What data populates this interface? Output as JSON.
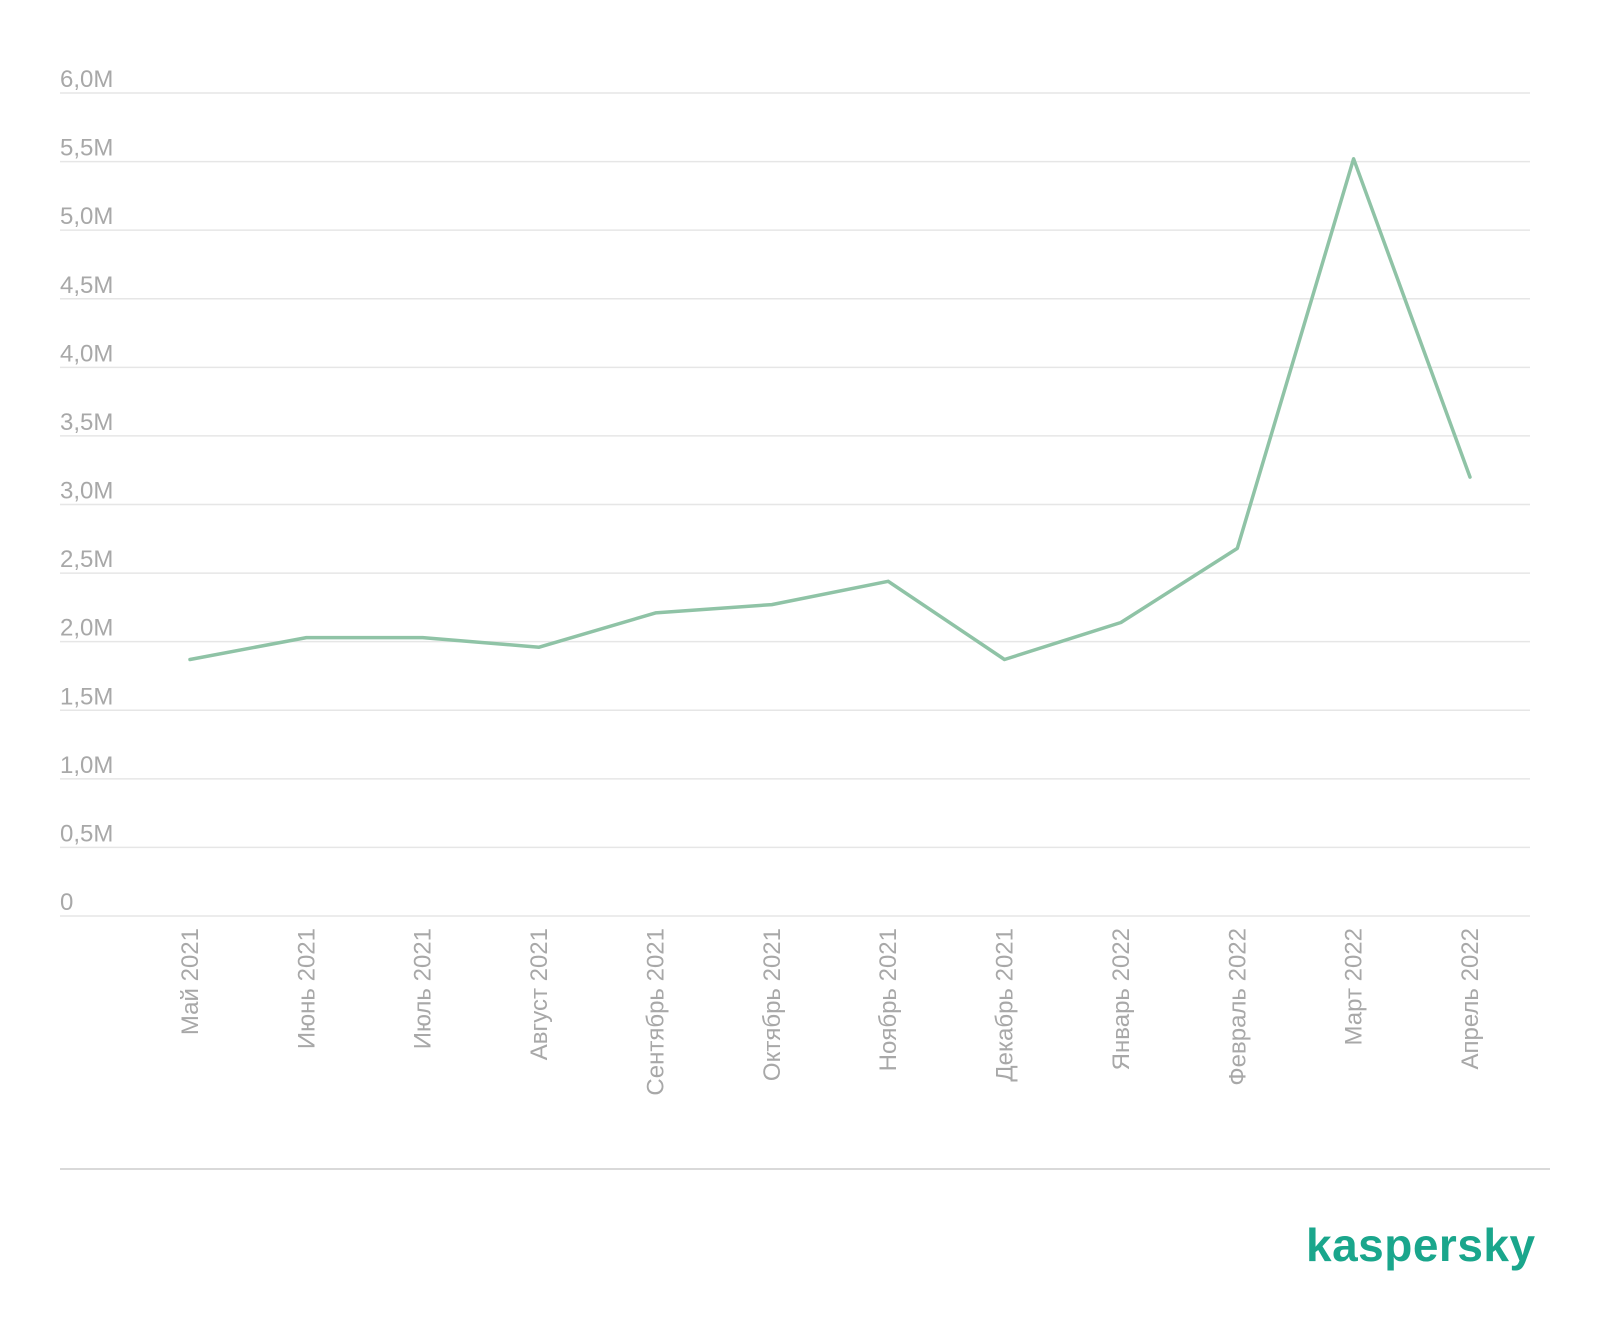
{
  "chart_data": {
    "type": "line",
    "categories": [
      "Май 2021",
      "Июнь 2021",
      "Июль 2021",
      "Август 2021",
      "Сентябрь 2021",
      "Октябрь 2021",
      "Ноябрь 2021",
      "Декабрь 2021",
      "Январь 2022",
      "Февраль 2022",
      "Март 2022",
      "Апрель 2022"
    ],
    "series": [
      {
        "values": [
          1.87,
          2.03,
          2.03,
          1.96,
          2.21,
          2.27,
          2.44,
          1.87,
          2.14,
          2.68,
          5.52,
          3.2
        ],
        "color": "#8fc3a6"
      }
    ],
    "y_ticks": [
      {
        "value": 0,
        "label": "0"
      },
      {
        "value": 0.5,
        "label": "0,5M"
      },
      {
        "value": 1.0,
        "label": "1,0M"
      },
      {
        "value": 1.5,
        "label": "1,5M"
      },
      {
        "value": 2.0,
        "label": "2,0M"
      },
      {
        "value": 2.5,
        "label": "2,5M"
      },
      {
        "value": 3.0,
        "label": "3,0M"
      },
      {
        "value": 3.5,
        "label": "3,5M"
      },
      {
        "value": 4.0,
        "label": "4,0M"
      },
      {
        "value": 4.5,
        "label": "4,5M"
      },
      {
        "value": 5.0,
        "label": "5,0M"
      },
      {
        "value": 5.5,
        "label": "5,5M"
      },
      {
        "value": 6.0,
        "label": "6,0M"
      }
    ],
    "ylim": [
      0,
      6
    ],
    "grid": true,
    "legend": "none",
    "title": "",
    "xlabel": "",
    "ylabel": ""
  },
  "brand": {
    "logo_text": "kaspersky",
    "color": "#1aa68c"
  }
}
